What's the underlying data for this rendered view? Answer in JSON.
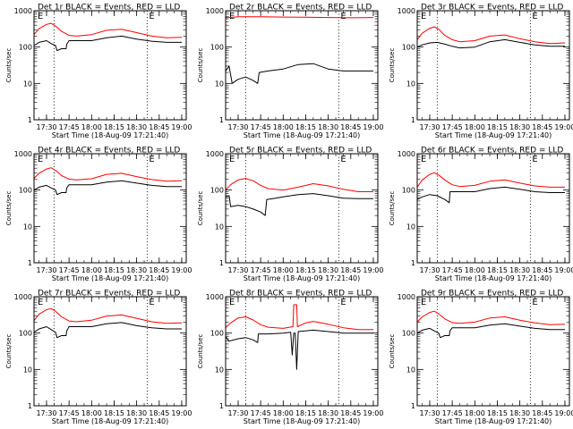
{
  "figure": {
    "x_axis_title": "Start Time (18-Aug-09 17:21:40)",
    "y_axis_title": "Counts/sec",
    "x_tick_labels": [
      "17:30",
      "17:45",
      "18:00",
      "18:15",
      "18:30",
      "18:45",
      "19:00"
    ],
    "y_tick_labels": [
      "1",
      "10",
      "100",
      "1000"
    ],
    "corner_marks": [
      "E",
      "E"
    ],
    "colors": {
      "events": "#000000",
      "lld": "#ff0000",
      "axes": "#000000",
      "background": "#ffffff"
    }
  },
  "chart_data": [
    {
      "type": "line",
      "title": "Det 1r BLACK = Events, RED = LLD",
      "xlabel": "Start Time (18-Aug-09 17:21:40)",
      "ylabel": "Counts/sec",
      "xlim": [
        "17:21:40",
        "19:03"
      ],
      "ylim": [
        1,
        1000
      ],
      "yscale": "log",
      "vlines": [
        "17:35",
        "18:37"
      ],
      "series": [
        {
          "color": "#000000",
          "x": [
            "17:21:40",
            "17:25",
            "17:30",
            "17:33",
            "17:36",
            "17:37",
            "17:40",
            "17:43",
            "17:43:30",
            "17:45",
            "17:50",
            "18:00",
            "18:10",
            "18:20",
            "18:30",
            "18:40",
            "18:50",
            "19:00"
          ],
          "y": [
            110,
            135,
            150,
            125,
            110,
            80,
            90,
            90,
            120,
            150,
            150,
            150,
            180,
            200,
            165,
            145,
            135,
            135
          ]
        },
        {
          "color": "#ff0000",
          "x": [
            "17:21:40",
            "17:25",
            "17:30",
            "17:33",
            "17:36",
            "17:40",
            "17:45",
            "17:50",
            "18:00",
            "18:10",
            "18:20",
            "18:30",
            "18:40",
            "18:50",
            "19:00"
          ],
          "y": [
            220,
            320,
            420,
            450,
            380,
            270,
            210,
            200,
            220,
            290,
            310,
            250,
            200,
            180,
            185
          ]
        }
      ]
    },
    {
      "type": "line",
      "title": "Det 2r BLACK = Events, RED = LLD",
      "xlabel": "Start Time (18-Aug-09 17:21:40)",
      "ylabel": "Counts/sec",
      "xlim": [
        "17:21:40",
        "19:03"
      ],
      "ylim": [
        1,
        1000
      ],
      "yscale": "log",
      "vlines": [
        "17:35",
        "18:37"
      ],
      "series": [
        {
          "color": "#000000",
          "x": [
            "17:21:40",
            "17:24",
            "17:26",
            "17:30",
            "17:35",
            "17:40",
            "17:43",
            "17:44",
            "17:50",
            "18:00",
            "18:10",
            "18:20",
            "18:30",
            "18:40",
            "18:50",
            "19:00"
          ],
          "y": [
            22,
            30,
            10,
            13,
            15,
            12,
            10,
            20,
            22,
            25,
            33,
            35,
            25,
            22,
            22,
            22
          ]
        },
        {
          "color": "#ff0000",
          "x": [
            "17:21:40",
            "17:30",
            "17:45",
            "18:00",
            "18:15",
            "18:30",
            "18:45",
            "19:00"
          ],
          "y": [
            640,
            680,
            680,
            670,
            660,
            650,
            640,
            650
          ]
        }
      ]
    },
    {
      "type": "line",
      "title": "Det 3r BLACK = Events, RED = LLD",
      "xlabel": "Start Time (18-Aug-09 17:21:40)",
      "ylabel": "Counts/sec",
      "xlim": [
        "17:21:40",
        "19:03"
      ],
      "ylim": [
        1,
        1000
      ],
      "yscale": "log",
      "vlines": [
        "17:35",
        "18:37"
      ],
      "series": [
        {
          "color": "#000000",
          "x": [
            "17:21:40",
            "17:25",
            "17:30",
            "17:35",
            "17:40",
            "17:45",
            "17:50",
            "18:00",
            "18:10",
            "18:20",
            "18:30",
            "18:40",
            "18:50",
            "19:00"
          ],
          "y": [
            100,
            115,
            130,
            135,
            120,
            105,
            95,
            100,
            140,
            160,
            135,
            115,
            105,
            105
          ]
        },
        {
          "color": "#ff0000",
          "x": [
            "17:21:40",
            "17:25",
            "17:30",
            "17:33",
            "17:36",
            "17:40",
            "17:45",
            "17:50",
            "18:00",
            "18:10",
            "18:20",
            "18:30",
            "18:40",
            "18:50",
            "19:00"
          ],
          "y": [
            160,
            240,
            330,
            360,
            310,
            210,
            160,
            140,
            150,
            200,
            215,
            170,
            140,
            125,
            130
          ]
        }
      ]
    },
    {
      "type": "line",
      "title": "Det 4r BLACK = Events, RED = LLD",
      "xlabel": "Start Time (18-Aug-09 17:21:40)",
      "ylabel": "Counts/sec",
      "xlim": [
        "17:21:40",
        "19:03"
      ],
      "ylim": [
        1,
        1000
      ],
      "yscale": "log",
      "vlines": [
        "17:35",
        "18:37"
      ],
      "series": [
        {
          "color": "#000000",
          "x": [
            "17:21:40",
            "17:25",
            "17:30",
            "17:33",
            "17:36",
            "17:37",
            "17:40",
            "17:43",
            "17:43:30",
            "17:45",
            "17:50",
            "18:00",
            "18:10",
            "18:20",
            "18:30",
            "18:40",
            "18:50",
            "19:00"
          ],
          "y": [
            100,
            120,
            135,
            115,
            100,
            75,
            85,
            85,
            115,
            140,
            140,
            140,
            165,
            180,
            155,
            135,
            125,
            125
          ]
        },
        {
          "color": "#ff0000",
          "x": [
            "17:21:40",
            "17:25",
            "17:30",
            "17:33",
            "17:36",
            "17:40",
            "17:45",
            "17:50",
            "18:00",
            "18:10",
            "18:20",
            "18:30",
            "18:40",
            "18:50",
            "19:00"
          ],
          "y": [
            210,
            290,
            380,
            410,
            350,
            250,
            200,
            190,
            205,
            270,
            290,
            235,
            195,
            175,
            180
          ]
        }
      ]
    },
    {
      "type": "line",
      "title": "Det 5r BLACK = Events, RED = LLD",
      "xlabel": "Start Time (18-Aug-09 17:21:40)",
      "ylabel": "Counts/sec",
      "xlim": [
        "17:21:40",
        "19:03"
      ],
      "ylim": [
        1,
        1000
      ],
      "yscale": "log",
      "vlines": [
        "17:35",
        "18:37"
      ],
      "series": [
        {
          "color": "#000000",
          "x": [
            "17:21:40",
            "17:24",
            "17:25",
            "17:30",
            "17:35",
            "17:40",
            "17:45",
            "17:48",
            "17:49",
            "17:55",
            "18:00",
            "18:10",
            "18:20",
            "18:30",
            "18:40",
            "18:50",
            "19:00"
          ],
          "y": [
            65,
            70,
            35,
            38,
            35,
            30,
            25,
            20,
            55,
            60,
            65,
            75,
            80,
            70,
            60,
            58,
            58
          ]
        },
        {
          "color": "#ff0000",
          "x": [
            "17:21:40",
            "17:25",
            "17:30",
            "17:35",
            "17:40",
            "17:45",
            "17:50",
            "18:00",
            "18:10",
            "18:20",
            "18:30",
            "18:40",
            "18:50",
            "19:00"
          ],
          "y": [
            100,
            140,
            190,
            210,
            180,
            135,
            110,
            100,
            120,
            150,
            130,
            105,
            90,
            90
          ]
        }
      ]
    },
    {
      "type": "line",
      "title": "Det 6r BLACK = Events, RED = LLD",
      "xlabel": "Start Time (18-Aug-09 17:21:40)",
      "ylabel": "Counts/sec",
      "xlim": [
        "17:21:40",
        "19:03"
      ],
      "ylim": [
        1,
        1000
      ],
      "yscale": "log",
      "vlines": [
        "17:35",
        "18:37"
      ],
      "series": [
        {
          "color": "#000000",
          "x": [
            "17:21:40",
            "17:25",
            "17:30",
            "17:35",
            "17:40",
            "17:43",
            "17:43:30",
            "17:50",
            "18:00",
            "18:10",
            "18:20",
            "18:30",
            "18:40",
            "18:50",
            "19:00"
          ],
          "y": [
            55,
            65,
            75,
            70,
            55,
            45,
            90,
            90,
            90,
            110,
            120,
            105,
            90,
            85,
            85
          ]
        },
        {
          "color": "#ff0000",
          "x": [
            "17:21:40",
            "17:25",
            "17:30",
            "17:33",
            "17:36",
            "17:40",
            "17:45",
            "17:50",
            "18:00",
            "18:10",
            "18:20",
            "18:30",
            "18:40",
            "18:50",
            "19:00"
          ],
          "y": [
            120,
            190,
            270,
            300,
            260,
            190,
            140,
            125,
            135,
            175,
            190,
            155,
            130,
            120,
            120
          ]
        }
      ]
    },
    {
      "type": "line",
      "title": "Det 7r BLACK = Events, RED = LLD",
      "xlabel": "Start Time (18-Aug-09 17:21:40)",
      "ylabel": "Counts/sec",
      "xlim": [
        "17:21:40",
        "19:03"
      ],
      "ylim": [
        1,
        1000
      ],
      "yscale": "log",
      "vlines": [
        "17:35",
        "18:37"
      ],
      "series": [
        {
          "color": "#000000",
          "x": [
            "17:21:40",
            "17:25",
            "17:30",
            "17:33",
            "17:36",
            "17:37",
            "17:40",
            "17:43",
            "17:43:30",
            "17:45",
            "17:50",
            "18:00",
            "18:10",
            "18:20",
            "18:30",
            "18:40",
            "18:50",
            "19:00"
          ],
          "y": [
            105,
            130,
            150,
            125,
            105,
            75,
            85,
            85,
            115,
            150,
            150,
            150,
            180,
            195,
            160,
            140,
            130,
            130
          ]
        },
        {
          "color": "#ff0000",
          "x": [
            "17:21:40",
            "17:25",
            "17:30",
            "17:33",
            "17:36",
            "17:40",
            "17:45",
            "17:50",
            "18:00",
            "18:10",
            "18:20",
            "18:30",
            "18:40",
            "18:50",
            "19:00"
          ],
          "y": [
            220,
            330,
            440,
            470,
            400,
            280,
            215,
            205,
            225,
            295,
            315,
            255,
            205,
            185,
            190
          ]
        }
      ]
    },
    {
      "type": "line",
      "title": "Det 8r BLACK = Events, RED = LLD",
      "xlabel": "Start Time (18-Aug-09 17:21:40)",
      "ylabel": "Counts/sec",
      "xlim": [
        "17:21:40",
        "19:03"
      ],
      "ylim": [
        1,
        1000
      ],
      "yscale": "log",
      "vlines": [
        "17:35",
        "18:37"
      ],
      "series": [
        {
          "color": "#000000",
          "x": [
            "17:21:40",
            "17:24",
            "17:30",
            "17:35",
            "17:40",
            "17:43",
            "17:43:30",
            "17:50",
            "18:00",
            "18:05",
            "18:06",
            "18:07",
            "18:08",
            "18:09",
            "18:10",
            "18:20",
            "18:30",
            "18:40",
            "18:50",
            "19:00"
          ],
          "y": [
            80,
            60,
            70,
            75,
            65,
            55,
            95,
            95,
            100,
            105,
            25,
            100,
            100,
            10,
            110,
            120,
            110,
            100,
            100,
            100
          ]
        },
        {
          "color": "#ff0000",
          "x": [
            "17:21:40",
            "17:25",
            "17:30",
            "17:35",
            "17:40",
            "17:45",
            "17:50",
            "18:00",
            "18:06:30",
            "18:07",
            "18:09",
            "18:09:30",
            "18:15",
            "18:20",
            "18:30",
            "18:40",
            "18:50",
            "19:00"
          ],
          "y": [
            140,
            190,
            260,
            280,
            230,
            170,
            145,
            135,
            150,
            600,
            600,
            150,
            190,
            210,
            175,
            140,
            125,
            125
          ]
        }
      ]
    },
    {
      "type": "line",
      "title": "Det 9r BLACK = Events, RED = LLD",
      "xlabel": "Start Time (18-Aug-09 17:21:40)",
      "ylabel": "Counts/sec",
      "xlim": [
        "17:21:40",
        "19:03"
      ],
      "ylim": [
        1,
        1000
      ],
      "yscale": "log",
      "vlines": [
        "17:35",
        "18:37"
      ],
      "series": [
        {
          "color": "#000000",
          "x": [
            "17:21:40",
            "17:25",
            "17:30",
            "17:33",
            "17:36",
            "17:37",
            "17:40",
            "17:43",
            "17:43:30",
            "17:45",
            "17:50",
            "18:00",
            "18:10",
            "18:20",
            "18:30",
            "18:40",
            "18:50",
            "19:00"
          ],
          "y": [
            100,
            120,
            135,
            115,
            100,
            75,
            85,
            85,
            115,
            140,
            140,
            140,
            165,
            180,
            155,
            135,
            125,
            125
          ]
        },
        {
          "color": "#ff0000",
          "x": [
            "17:21:40",
            "17:25",
            "17:30",
            "17:33",
            "17:36",
            "17:40",
            "17:45",
            "17:50",
            "18:00",
            "18:10",
            "18:20",
            "18:30",
            "18:40",
            "18:50",
            "19:00"
          ],
          "y": [
            200,
            280,
            370,
            400,
            340,
            245,
            195,
            185,
            200,
            260,
            280,
            225,
            190,
            170,
            175
          ]
        }
      ]
    }
  ]
}
